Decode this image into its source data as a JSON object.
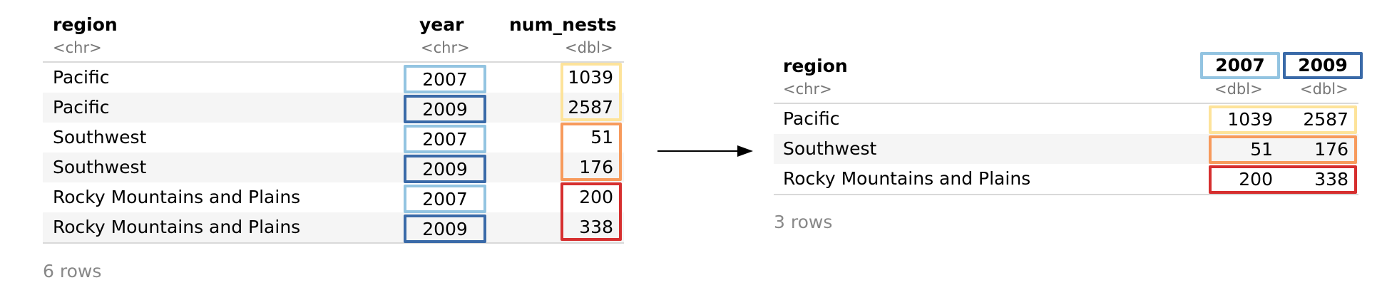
{
  "colors": {
    "light_blue": "#93c4e1",
    "dark_blue": "#3a6aa8",
    "yellow": "#fde39a",
    "orange": "#f79a5c",
    "red": "#d62f2f",
    "stripe": "#f5f5f5",
    "type_text": "#777777"
  },
  "left": {
    "headers": {
      "region": "region",
      "year": "year",
      "num_nests": "num_nests"
    },
    "types": {
      "region": "<chr>",
      "year": "<chr>",
      "num_nests": "<dbl>"
    },
    "rows": [
      {
        "region": "Pacific",
        "year": "2007",
        "num_nests": "1039"
      },
      {
        "region": "Pacific",
        "year": "2009",
        "num_nests": "2587"
      },
      {
        "region": "Southwest",
        "year": "2007",
        "num_nests": "51"
      },
      {
        "region": "Southwest",
        "year": "2009",
        "num_nests": "176"
      },
      {
        "region": "Rocky Mountains and Plains",
        "year": "2007",
        "num_nests": "200"
      },
      {
        "region": "Rocky Mountains and Plains",
        "year": "2009",
        "num_nests": "338"
      }
    ],
    "footer": "6 rows"
  },
  "right": {
    "headers": {
      "region": "region",
      "col2007": "2007",
      "col2009": "2009"
    },
    "types": {
      "region": "<chr>",
      "col2007": "<dbl>",
      "col2009": "<dbl>"
    },
    "rows": [
      {
        "region": "Pacific",
        "v2007": "1039",
        "v2009": "2587"
      },
      {
        "region": "Southwest",
        "v2007": "51",
        "v2009": "176"
      },
      {
        "region": "Rocky Mountains and Plains",
        "v2007": "200",
        "v2009": "338"
      }
    ],
    "footer": "3 rows"
  }
}
